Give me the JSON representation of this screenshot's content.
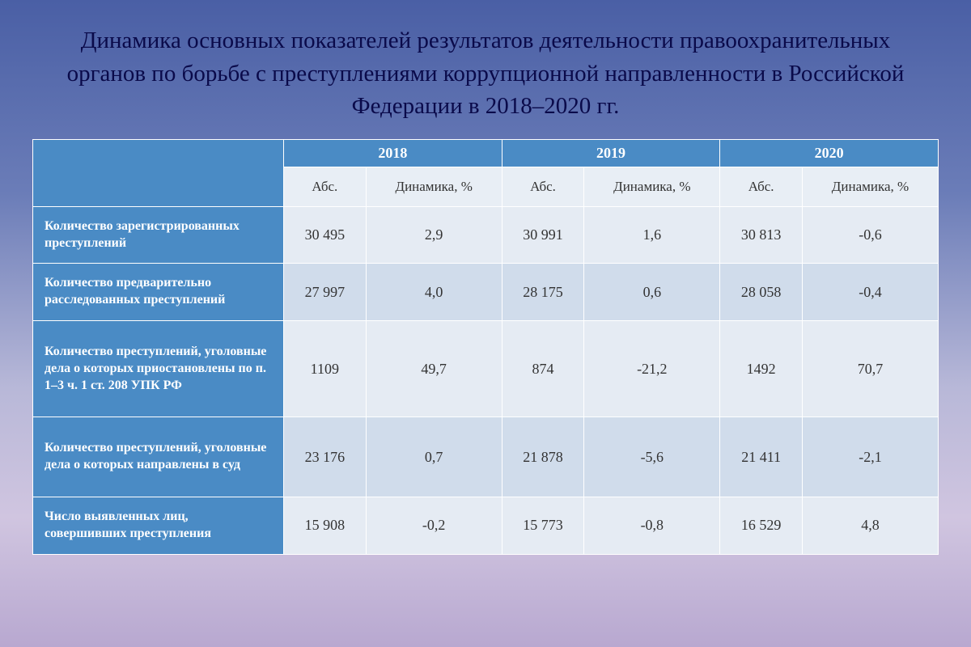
{
  "title": "Динамика основных показателей результатов деятельности правоохранительных органов по борьбе с преступлениями коррупционной направленности в Российской Федерации в 2018–2020 гг.",
  "table": {
    "years": [
      "2018",
      "2019",
      "2020"
    ],
    "subheaders": {
      "abs": "Абс.",
      "dynamic": "Динамика, %"
    },
    "rows": [
      {
        "label": "Количество зарегистрированных преступлений",
        "cells": [
          "30 495",
          "2,9",
          "30 991",
          "1,6",
          "30 813",
          "-0,6"
        ],
        "tall": false
      },
      {
        "label": "Количество предварительно расследованных преступлений",
        "cells": [
          "27 997",
          "4,0",
          "28 175",
          "0,6",
          "28 058",
          "-0,4"
        ],
        "tall": false
      },
      {
        "label": "Количество преступлений, уголовные дела о которых приостановлены по п. 1–3 ч. 1 ст. 208 УПК РФ",
        "cells": [
          "1109",
          "49,7",
          "874",
          "-21,2",
          "1492",
          "70,7"
        ],
        "tall": true
      },
      {
        "label": "Количество преступлений, уголовные дела о которых направлены в суд",
        "cells": [
          "23 176",
          "0,7",
          "21 878",
          "-5,6",
          "21 411",
          "-2,1"
        ],
        "tall": true
      },
      {
        "label": "Число выявленных лиц, совершивших преступления",
        "cells": [
          "15 908",
          "-0,2",
          "15 773",
          "-0,8",
          "16 529",
          "4,8"
        ],
        "tall": false
      }
    ],
    "colors": {
      "header_blue": "#4a8bc5",
      "sub_bg": "#e8eef5",
      "row_odd": "#e5ebf3",
      "row_even": "#d0dceb",
      "border": "#ffffff"
    }
  }
}
